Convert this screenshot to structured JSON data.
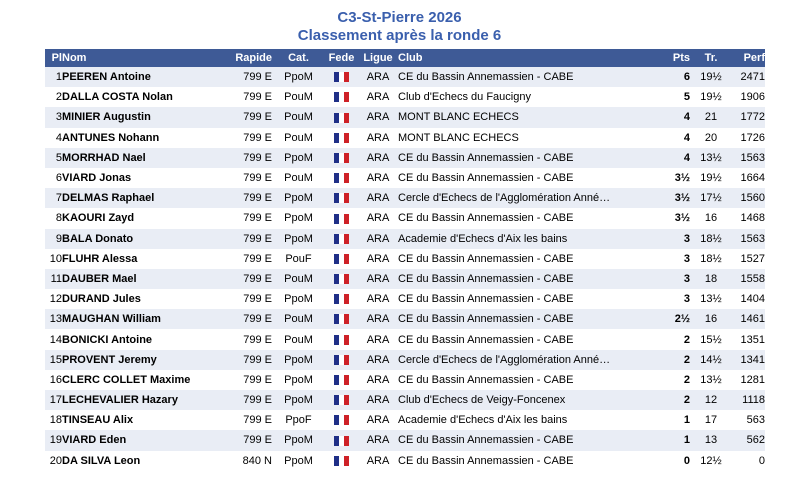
{
  "page": {
    "title": "C3-St-Pierre 2026",
    "subtitle": "Classement après la ronde 6"
  },
  "colors": {
    "title_text": "#3a5fad",
    "header_bg": "#3e5a96",
    "header_text": "#ffffff",
    "row_alt_bg": "#e9edf5",
    "flag_blue": "#1f2f87",
    "flag_red": "#ce2127"
  },
  "table": {
    "headers": [
      "Pl",
      "Nom",
      "Rapide",
      "Cat.",
      "Fede",
      "Ligue",
      "Club",
      "Pts",
      "Tr.",
      "Perf"
    ],
    "fede_icon": "france-flag-icon",
    "rows": [
      {
        "pl": "1",
        "name": "PEEREN Antoine",
        "rating": "799 E",
        "cat": "PpoM",
        "ligue": "ARA",
        "club": "CE du Bassin Annemassien - CABE",
        "pts": "6",
        "tr": "19½",
        "perf": "2471"
      },
      {
        "pl": "2",
        "name": "DALLA COSTA Nolan",
        "rating": "799 E",
        "cat": "PouM",
        "ligue": "ARA",
        "club": "Club d'Echecs du Faucigny",
        "pts": "5",
        "tr": "19½",
        "perf": "1906"
      },
      {
        "pl": "3",
        "name": "MINIER Augustin",
        "rating": "799 E",
        "cat": "PouM",
        "ligue": "ARA",
        "club": "MONT BLANC ECHECS",
        "pts": "4",
        "tr": "21",
        "perf": "1772"
      },
      {
        "pl": "4",
        "name": "ANTUNES Nohann",
        "rating": "799 E",
        "cat": "PouM",
        "ligue": "ARA",
        "club": "MONT BLANC ECHECS",
        "pts": "4",
        "tr": "20",
        "perf": "1726"
      },
      {
        "pl": "5",
        "name": "MORRHAD Nael",
        "rating": "799 E",
        "cat": "PpoM",
        "ligue": "ARA",
        "club": "CE du Bassin Annemassien - CABE",
        "pts": "4",
        "tr": "13½",
        "perf": "1563"
      },
      {
        "pl": "6",
        "name": "VIARD Jonas",
        "rating": "799 E",
        "cat": "PouM",
        "ligue": "ARA",
        "club": "CE du Bassin Annemassien - CABE",
        "pts": "3½",
        "tr": "19½",
        "perf": "1664"
      },
      {
        "pl": "7",
        "name": "DELMAS Raphael",
        "rating": "799 E",
        "cat": "PpoM",
        "ligue": "ARA",
        "club": "Cercle d'Echecs de l'Agglomération Anné…",
        "pts": "3½",
        "tr": "17½",
        "perf": "1560"
      },
      {
        "pl": "8",
        "name": "KAOURI Zayd",
        "rating": "799 E",
        "cat": "PpoM",
        "ligue": "ARA",
        "club": "CE du Bassin Annemassien - CABE",
        "pts": "3½",
        "tr": "16",
        "perf": "1468"
      },
      {
        "pl": "9",
        "name": "BALA Donato",
        "rating": "799 E",
        "cat": "PpoM",
        "ligue": "ARA",
        "club": "Academie d'Echecs d'Aix les bains",
        "pts": "3",
        "tr": "18½",
        "perf": "1563"
      },
      {
        "pl": "10",
        "name": "FLUHR Alessa",
        "rating": "799 E",
        "cat": "PouF",
        "ligue": "ARA",
        "club": "CE du Bassin Annemassien - CABE",
        "pts": "3",
        "tr": "18½",
        "perf": "1527"
      },
      {
        "pl": "11",
        "name": "DAUBER Mael",
        "rating": "799 E",
        "cat": "PouM",
        "ligue": "ARA",
        "club": "CE du Bassin Annemassien - CABE",
        "pts": "3",
        "tr": "18",
        "perf": "1558"
      },
      {
        "pl": "12",
        "name": "DURAND Jules",
        "rating": "799 E",
        "cat": "PpoM",
        "ligue": "ARA",
        "club": "CE du Bassin Annemassien - CABE",
        "pts": "3",
        "tr": "13½",
        "perf": "1404"
      },
      {
        "pl": "13",
        "name": "MAUGHAN William",
        "rating": "799 E",
        "cat": "PouM",
        "ligue": "ARA",
        "club": "CE du Bassin Annemassien - CABE",
        "pts": "2½",
        "tr": "16",
        "perf": "1461"
      },
      {
        "pl": "14",
        "name": "BONICKI Antoine",
        "rating": "799 E",
        "cat": "PouM",
        "ligue": "ARA",
        "club": "CE du Bassin Annemassien - CABE",
        "pts": "2",
        "tr": "15½",
        "perf": "1351"
      },
      {
        "pl": "15",
        "name": "PROVENT Jeremy",
        "rating": "799 E",
        "cat": "PpoM",
        "ligue": "ARA",
        "club": "Cercle d'Echecs de l'Agglomération Anné…",
        "pts": "2",
        "tr": "14½",
        "perf": "1341"
      },
      {
        "pl": "16",
        "name": "CLERC COLLET Maxime",
        "rating": "799 E",
        "cat": "PpoM",
        "ligue": "ARA",
        "club": "CE du Bassin Annemassien - CABE",
        "pts": "2",
        "tr": "13½",
        "perf": "1281"
      },
      {
        "pl": "17",
        "name": "LECHEVALIER Hazary",
        "rating": "799 E",
        "cat": "PpoM",
        "ligue": "ARA",
        "club": "Club d'Echecs de Veigy-Foncenex",
        "pts": "2",
        "tr": "12",
        "perf": "1118"
      },
      {
        "pl": "18",
        "name": "TINSEAU Alix",
        "rating": "799 E",
        "cat": "PpoF",
        "ligue": "ARA",
        "club": "Academie d'Echecs d'Aix les bains",
        "pts": "1",
        "tr": "17",
        "perf": "563"
      },
      {
        "pl": "19",
        "name": "VIARD Eden",
        "rating": "799 E",
        "cat": "PpoM",
        "ligue": "ARA",
        "club": "CE du Bassin Annemassien - CABE",
        "pts": "1",
        "tr": "13",
        "perf": "562"
      },
      {
        "pl": "20",
        "name": "DA SILVA Leon",
        "rating": "840 N",
        "cat": "PpoM",
        "ligue": "ARA",
        "club": "CE du Bassin Annemassien - CABE",
        "pts": "0",
        "tr": "12½",
        "perf": "0"
      }
    ]
  }
}
